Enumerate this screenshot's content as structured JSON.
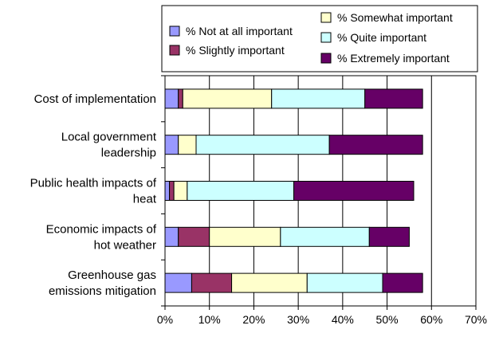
{
  "chart_data": {
    "type": "bar",
    "orientation": "horizontal",
    "stacked": true,
    "title": "",
    "xlabel": "",
    "ylabel": "",
    "xlim": [
      0,
      70
    ],
    "x_ticks": [
      "0%",
      "10%",
      "20%",
      "30%",
      "40%",
      "50%",
      "60%",
      "70%"
    ],
    "categories": [
      [
        "Cost of implementation"
      ],
      [
        "Local government",
        "leadership"
      ],
      [
        "Public health impacts of",
        "heat"
      ],
      [
        "Economic impacts of",
        "hot weather"
      ],
      [
        "Greenhouse gas",
        "emissions mitigation"
      ]
    ],
    "series": [
      {
        "name": "% Not at all important",
        "color": "#9999ff",
        "values": [
          3,
          3,
          1,
          3,
          6
        ]
      },
      {
        "name": "% Slightly important",
        "color": "#993366",
        "values": [
          1,
          0,
          1,
          7,
          9
        ]
      },
      {
        "name": "% Somewhat important",
        "color": "#ffffcc",
        "values": [
          20,
          4,
          3,
          16,
          17
        ]
      },
      {
        "name": "% Quite important",
        "color": "#ccffff",
        "values": [
          21,
          30,
          24,
          20,
          17
        ]
      },
      {
        "name": "% Extremely important",
        "color": "#660066",
        "values": [
          13,
          21,
          27,
          9,
          9
        ]
      }
    ],
    "legend_position": "top-right",
    "grid": true,
    "gridline_color": "#000000"
  }
}
